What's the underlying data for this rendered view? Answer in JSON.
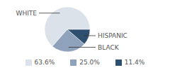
{
  "chart_data": {
    "type": "pie",
    "categories": [
      "WHITE",
      "BLACK",
      "HISPANIC"
    ],
    "values": [
      63.6,
      25.0,
      11.4
    ],
    "value_labels": [
      "63.6%",
      "25.0%",
      "11.4%"
    ],
    "colors": [
      "#dce2ea",
      "#8fa2bb",
      "#2f4f6f"
    ],
    "legend": "bottom",
    "data_labels": false
  }
}
